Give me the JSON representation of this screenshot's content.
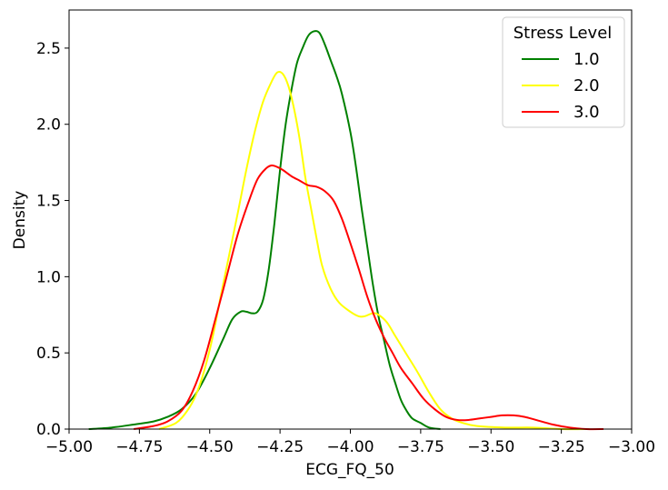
{
  "chart_data": {
    "type": "line",
    "title": "",
    "xlabel": "ECG_FQ_50",
    "ylabel": "Density",
    "xlim": [
      -5.0,
      -3.0
    ],
    "ylim": [
      0.0,
      2.75
    ],
    "xticks": [
      -5.0,
      -4.75,
      -4.5,
      -4.25,
      -4.0,
      -3.75,
      -3.5,
      -3.25,
      -3.0
    ],
    "xtick_labels": [
      "−5.00",
      "−4.75",
      "−4.50",
      "−4.25",
      "−4.00",
      "−3.75",
      "−3.50",
      "−3.25",
      "−3.00"
    ],
    "yticks": [
      0.0,
      0.5,
      1.0,
      1.5,
      2.0,
      2.5
    ],
    "ytick_labels": [
      "0.0",
      "0.5",
      "1.0",
      "1.5",
      "2.0",
      "2.5"
    ],
    "grid": false,
    "legend": {
      "title": "Stress Level",
      "placement": "top-right"
    },
    "series": [
      {
        "name": "1.0",
        "color": "#008000",
        "points": [
          [
            -4.93,
            0.0
          ],
          [
            -4.85,
            0.01
          ],
          [
            -4.77,
            0.03
          ],
          [
            -4.7,
            0.05
          ],
          [
            -4.65,
            0.08
          ],
          [
            -4.6,
            0.13
          ],
          [
            -4.55,
            0.23
          ],
          [
            -4.5,
            0.4
          ],
          [
            -4.45,
            0.6
          ],
          [
            -4.42,
            0.72
          ],
          [
            -4.39,
            0.77
          ],
          [
            -4.37,
            0.77
          ],
          [
            -4.35,
            0.76
          ],
          [
            -4.33,
            0.77
          ],
          [
            -4.31,
            0.85
          ],
          [
            -4.29,
            1.05
          ],
          [
            -4.27,
            1.35
          ],
          [
            -4.25,
            1.7
          ],
          [
            -4.23,
            2.0
          ],
          [
            -4.21,
            2.22
          ],
          [
            -4.19,
            2.4
          ],
          [
            -4.17,
            2.5
          ],
          [
            -4.15,
            2.58
          ],
          [
            -4.13,
            2.61
          ],
          [
            -4.11,
            2.6
          ],
          [
            -4.09,
            2.52
          ],
          [
            -4.07,
            2.42
          ],
          [
            -4.05,
            2.32
          ],
          [
            -4.03,
            2.2
          ],
          [
            -4.0,
            1.95
          ],
          [
            -3.98,
            1.72
          ],
          [
            -3.96,
            1.45
          ],
          [
            -3.94,
            1.2
          ],
          [
            -3.92,
            0.95
          ],
          [
            -3.9,
            0.74
          ],
          [
            -3.88,
            0.58
          ],
          [
            -3.86,
            0.42
          ],
          [
            -3.84,
            0.3
          ],
          [
            -3.82,
            0.19
          ],
          [
            -3.8,
            0.12
          ],
          [
            -3.78,
            0.07
          ],
          [
            -3.75,
            0.04
          ],
          [
            -3.72,
            0.01
          ],
          [
            -3.68,
            0.0
          ]
        ]
      },
      {
        "name": "2.0",
        "color": "#ffff00",
        "points": [
          [
            -4.68,
            0.0
          ],
          [
            -4.62,
            0.04
          ],
          [
            -4.58,
            0.12
          ],
          [
            -4.55,
            0.22
          ],
          [
            -4.52,
            0.38
          ],
          [
            -4.49,
            0.6
          ],
          [
            -4.46,
            0.88
          ],
          [
            -4.43,
            1.15
          ],
          [
            -4.4,
            1.42
          ],
          [
            -4.37,
            1.7
          ],
          [
            -4.34,
            1.95
          ],
          [
            -4.31,
            2.15
          ],
          [
            -4.28,
            2.28
          ],
          [
            -4.26,
            2.34
          ],
          [
            -4.24,
            2.33
          ],
          [
            -4.22,
            2.25
          ],
          [
            -4.2,
            2.1
          ],
          [
            -4.18,
            1.9
          ],
          [
            -4.16,
            1.65
          ],
          [
            -4.14,
            1.45
          ],
          [
            -4.12,
            1.25
          ],
          [
            -4.1,
            1.07
          ],
          [
            -4.07,
            0.92
          ],
          [
            -4.04,
            0.83
          ],
          [
            -4.0,
            0.77
          ],
          [
            -3.97,
            0.74
          ],
          [
            -3.95,
            0.74
          ],
          [
            -3.92,
            0.76
          ],
          [
            -3.9,
            0.75
          ],
          [
            -3.87,
            0.7
          ],
          [
            -3.84,
            0.61
          ],
          [
            -3.8,
            0.49
          ],
          [
            -3.76,
            0.37
          ],
          [
            -3.72,
            0.24
          ],
          [
            -3.68,
            0.13
          ],
          [
            -3.64,
            0.07
          ],
          [
            -3.6,
            0.04
          ],
          [
            -3.55,
            0.02
          ],
          [
            -3.45,
            0.01
          ],
          [
            -3.35,
            0.01
          ],
          [
            -3.25,
            0.0
          ],
          [
            -3.15,
            0.0
          ]
        ]
      },
      {
        "name": "3.0",
        "color": "#ff0000",
        "points": [
          [
            -4.77,
            0.0
          ],
          [
            -4.7,
            0.02
          ],
          [
            -4.65,
            0.05
          ],
          [
            -4.6,
            0.12
          ],
          [
            -4.56,
            0.25
          ],
          [
            -4.52,
            0.45
          ],
          [
            -4.48,
            0.72
          ],
          [
            -4.44,
            1.0
          ],
          [
            -4.4,
            1.28
          ],
          [
            -4.36,
            1.5
          ],
          [
            -4.33,
            1.64
          ],
          [
            -4.3,
            1.71
          ],
          [
            -4.28,
            1.73
          ],
          [
            -4.26,
            1.72
          ],
          [
            -4.24,
            1.7
          ],
          [
            -4.21,
            1.66
          ],
          [
            -4.18,
            1.63
          ],
          [
            -4.15,
            1.6
          ],
          [
            -4.12,
            1.59
          ],
          [
            -4.09,
            1.56
          ],
          [
            -4.06,
            1.5
          ],
          [
            -4.03,
            1.38
          ],
          [
            -4.0,
            1.22
          ],
          [
            -3.97,
            1.05
          ],
          [
            -3.94,
            0.87
          ],
          [
            -3.91,
            0.72
          ],
          [
            -3.88,
            0.6
          ],
          [
            -3.85,
            0.5
          ],
          [
            -3.82,
            0.4
          ],
          [
            -3.78,
            0.3
          ],
          [
            -3.74,
            0.2
          ],
          [
            -3.7,
            0.13
          ],
          [
            -3.66,
            0.08
          ],
          [
            -3.62,
            0.06
          ],
          [
            -3.58,
            0.06
          ],
          [
            -3.54,
            0.07
          ],
          [
            -3.5,
            0.08
          ],
          [
            -3.46,
            0.09
          ],
          [
            -3.42,
            0.09
          ],
          [
            -3.38,
            0.08
          ],
          [
            -3.34,
            0.06
          ],
          [
            -3.28,
            0.03
          ],
          [
            -3.22,
            0.01
          ],
          [
            -3.16,
            0.0
          ],
          [
            -3.1,
            0.0
          ]
        ]
      }
    ]
  }
}
